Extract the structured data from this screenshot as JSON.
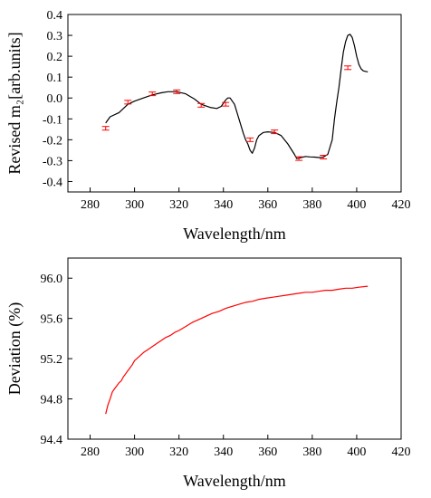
{
  "chart_data": [
    {
      "type": "line",
      "title": "",
      "xlabel": "Wavelength/nm",
      "ylabel": "Revised m₂[arb.units]",
      "xlim": [
        270,
        420
      ],
      "ylim": [
        -0.45,
        0.4
      ],
      "xticks": [
        280,
        300,
        320,
        340,
        360,
        380,
        400,
        420
      ],
      "yticks": [
        -0.4,
        -0.3,
        -0.2,
        -0.1,
        0.0,
        0.1,
        0.2,
        0.3,
        0.4
      ],
      "xtick_labels": [
        "280",
        "300",
        "320",
        "340",
        "360",
        "380",
        "400",
        "420"
      ],
      "ytick_labels": [
        "-0.4",
        "-0.3",
        "-0.2",
        "-0.1",
        "0.0",
        "0.1",
        "0.2",
        "0.3",
        "0.4"
      ],
      "grid": false,
      "colors": {
        "curve": "#000000",
        "markers": "#ff0000"
      },
      "series": [
        {
          "kind": "curve",
          "x": [
            287,
            289,
            293,
            297,
            300,
            304,
            308,
            312,
            315,
            319,
            323,
            327,
            330,
            334,
            337,
            339,
            341,
            342,
            343,
            345,
            347,
            349,
            350,
            351,
            352,
            353,
            354,
            355,
            356,
            358,
            360,
            363,
            366,
            369,
            372,
            373,
            375,
            377,
            379,
            381,
            383,
            385,
            387,
            389,
            390,
            391,
            392,
            393,
            394,
            395,
            396,
            397,
            398,
            399,
            400,
            401,
            402,
            403,
            405
          ],
          "y": [
            -0.12,
            -0.09,
            -0.07,
            -0.03,
            -0.015,
            0.0,
            0.015,
            0.025,
            0.03,
            0.03,
            0.02,
            -0.005,
            -0.03,
            -0.045,
            -0.05,
            -0.04,
            -0.01,
            0.0,
            0.0,
            -0.03,
            -0.1,
            -0.17,
            -0.2,
            -0.22,
            -0.25,
            -0.265,
            -0.24,
            -0.2,
            -0.18,
            -0.165,
            -0.162,
            -0.165,
            -0.18,
            -0.22,
            -0.27,
            -0.29,
            -0.285,
            -0.28,
            -0.282,
            -0.283,
            -0.285,
            -0.283,
            -0.27,
            -0.2,
            -0.1,
            -0.02,
            0.05,
            0.14,
            0.22,
            0.27,
            0.3,
            0.305,
            0.29,
            0.25,
            0.2,
            0.16,
            0.14,
            0.13,
            0.125
          ]
        },
        {
          "kind": "error-markers",
          "x": [
            287,
            297,
            308,
            319,
            330,
            341,
            352,
            363,
            374,
            385,
            396
          ],
          "y": [
            -0.145,
            -0.02,
            0.02,
            0.03,
            -0.035,
            -0.03,
            -0.2,
            -0.162,
            -0.29,
            -0.283,
            0.145
          ]
        }
      ]
    },
    {
      "type": "line",
      "title": "",
      "xlabel": "Wavelength/nm",
      "ylabel": "Deviation (%)",
      "xlim": [
        270,
        420
      ],
      "ylim": [
        94.4,
        96.2
      ],
      "xticks": [
        280,
        300,
        320,
        340,
        360,
        380,
        400,
        420
      ],
      "yticks": [
        94.4,
        94.8,
        95.2,
        95.6,
        96.0
      ],
      "xtick_labels": [
        "280",
        "300",
        "320",
        "340",
        "360",
        "380",
        "400",
        "420"
      ],
      "ytick_labels": [
        "94.4",
        "94.8",
        "95.2",
        "95.6",
        "96.0"
      ],
      "grid": false,
      "colors": {
        "curve": "#ff0000"
      },
      "series": [
        {
          "kind": "curve",
          "x": [
            287,
            288,
            289,
            290,
            291,
            292,
            293,
            294,
            295,
            296,
            297,
            298,
            299,
            300,
            302,
            304,
            306,
            308,
            310,
            312,
            314,
            316,
            318,
            320,
            323,
            326,
            329,
            332,
            335,
            338,
            341,
            344,
            347,
            350,
            353,
            356,
            359,
            362,
            365,
            368,
            371,
            374,
            377,
            380,
            383,
            386,
            389,
            392,
            395,
            398,
            401,
            405
          ],
          "y": [
            94.65,
            94.74,
            94.8,
            94.87,
            94.9,
            94.93,
            94.96,
            94.98,
            95.02,
            95.05,
            95.08,
            95.11,
            95.14,
            95.18,
            95.22,
            95.26,
            95.29,
            95.32,
            95.35,
            95.38,
            95.41,
            95.43,
            95.46,
            95.48,
            95.52,
            95.56,
            95.59,
            95.62,
            95.65,
            95.67,
            95.7,
            95.72,
            95.74,
            95.76,
            95.77,
            95.79,
            95.8,
            95.81,
            95.82,
            95.83,
            95.84,
            95.85,
            95.86,
            95.86,
            95.87,
            95.88,
            95.88,
            95.89,
            95.9,
            95.9,
            95.91,
            95.92
          ]
        }
      ]
    }
  ]
}
